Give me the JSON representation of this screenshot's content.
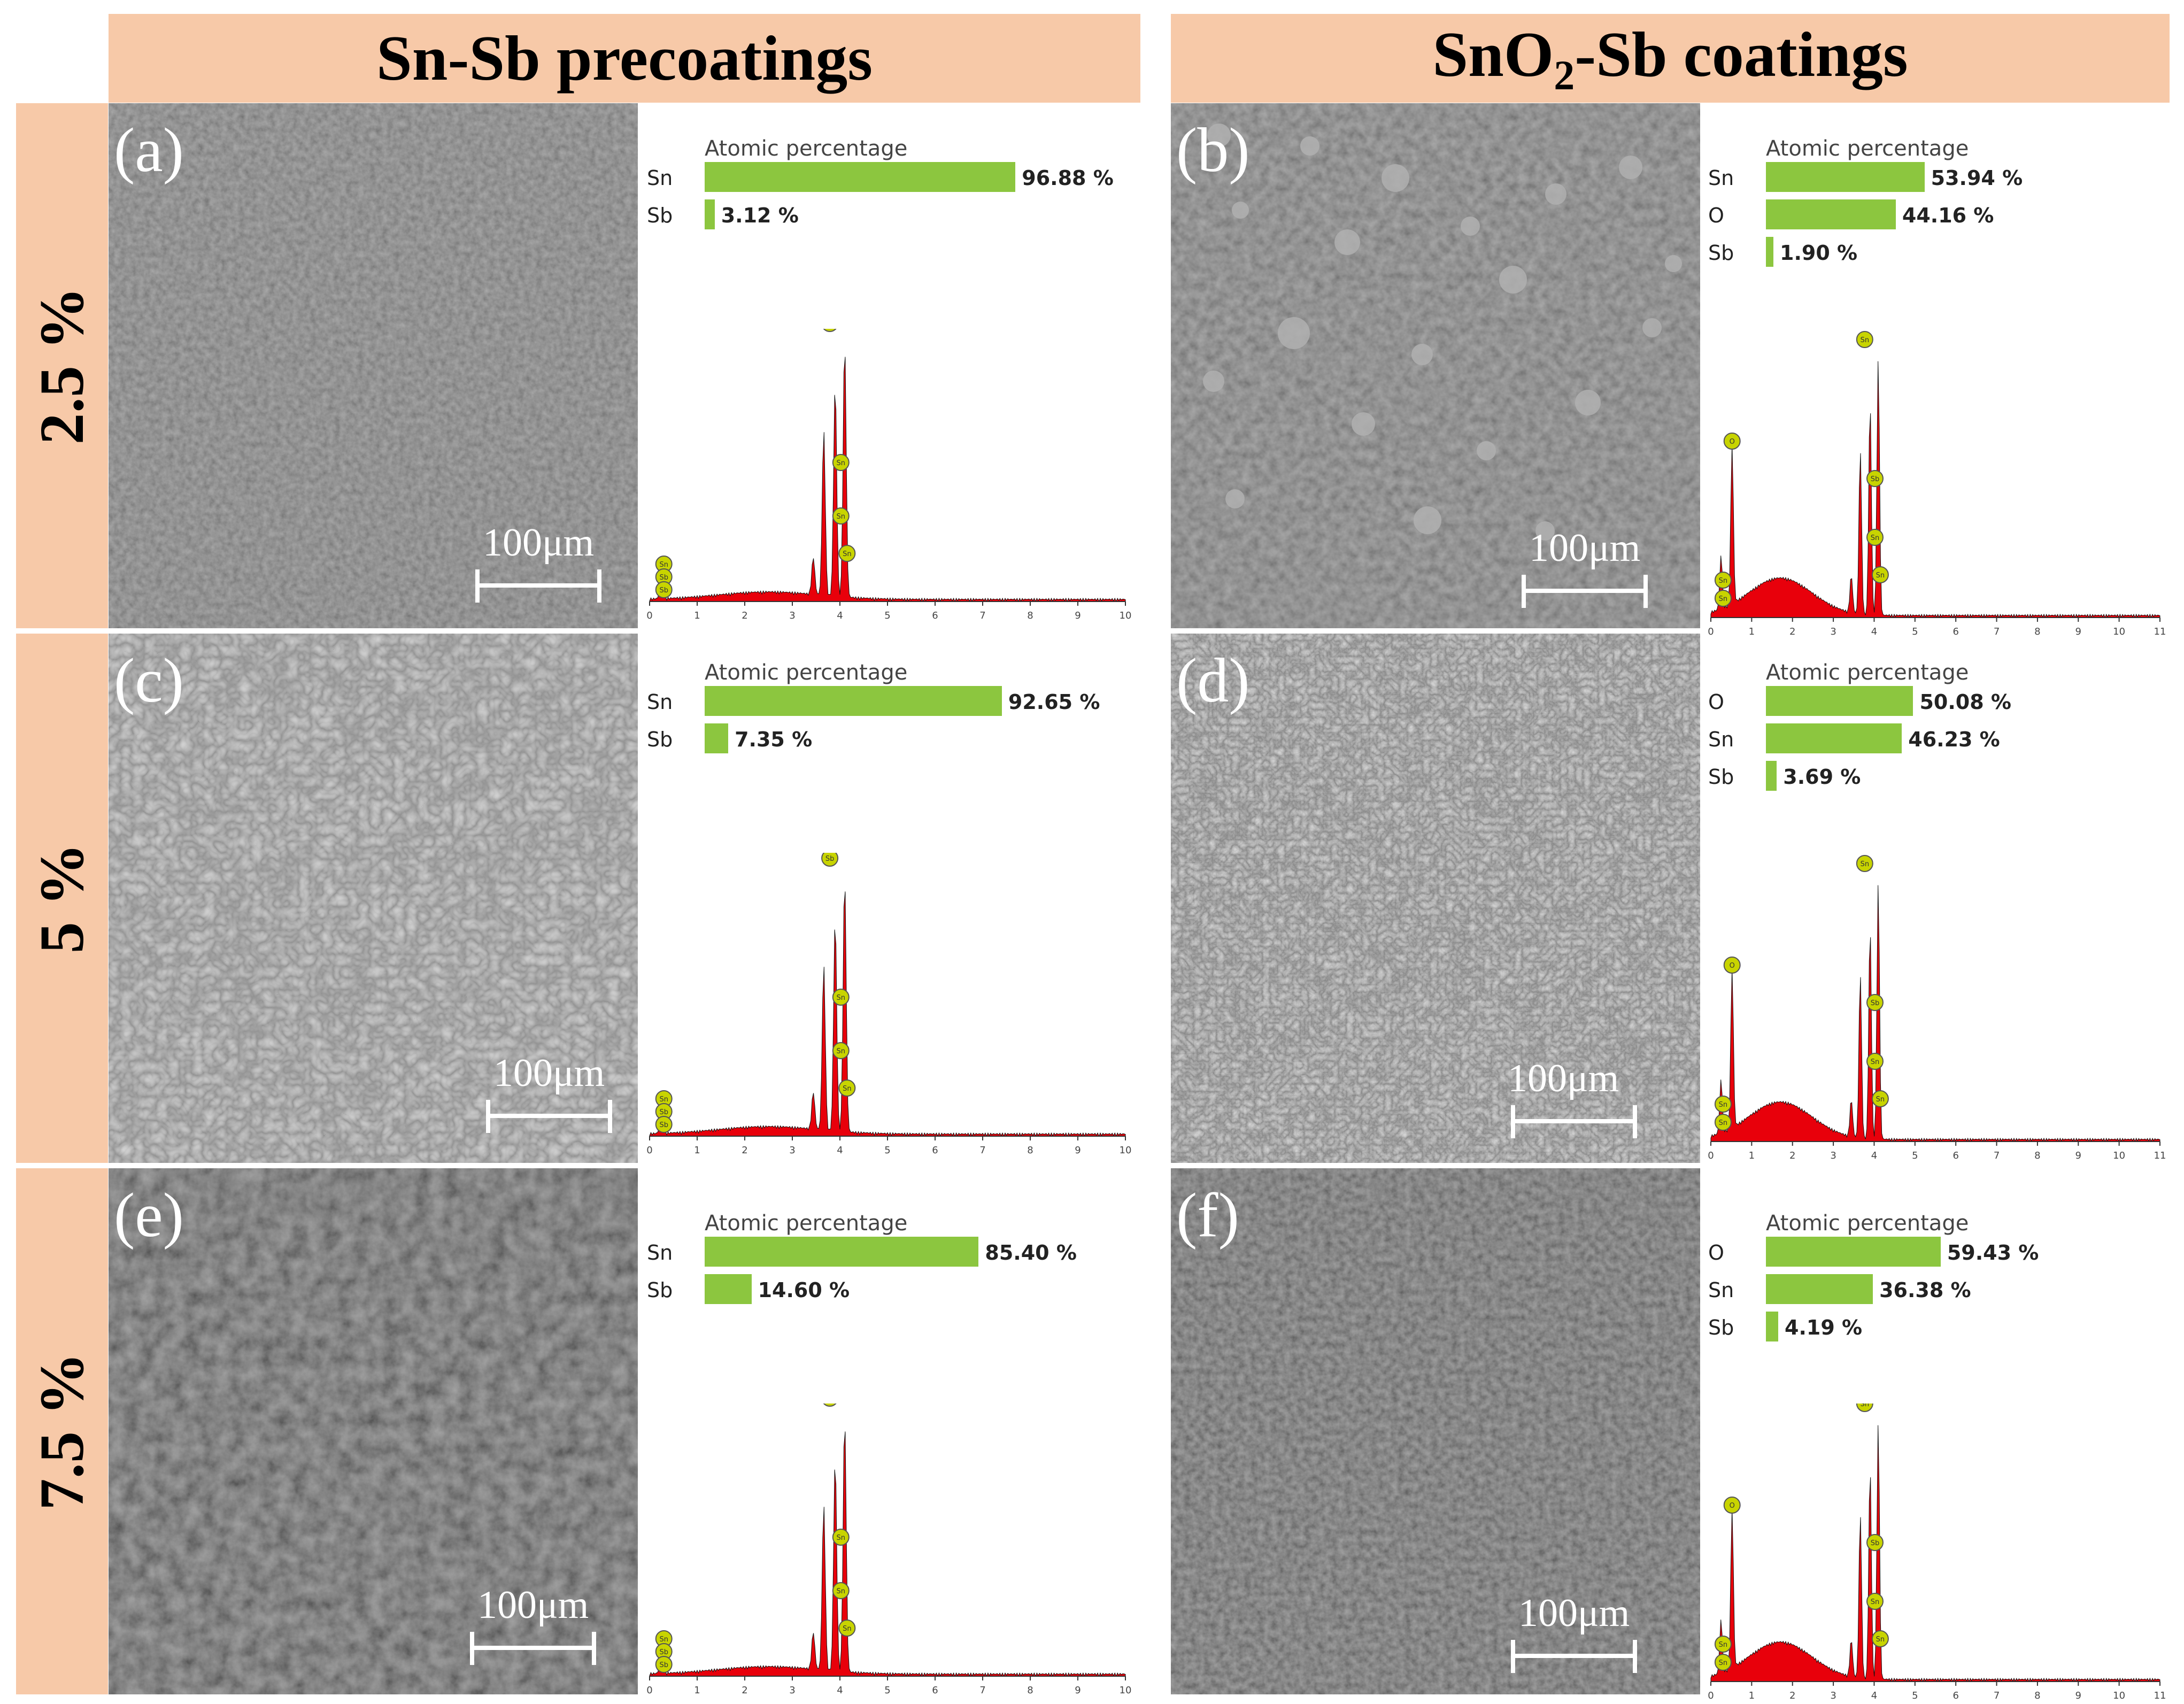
{
  "headers": {
    "left": "Sn-Sb precoatings",
    "right_pre": "SnO",
    "right_sub": "2",
    "right_post": "-Sb coatings"
  },
  "rows": [
    "2.5 %",
    "5 %",
    "7.5 %"
  ],
  "panels": {
    "a": {
      "label": "(a)",
      "scale": "100μm"
    },
    "b": {
      "label": "(b)",
      "scale": "100μm"
    },
    "c": {
      "label": "(c)",
      "scale": "100μm"
    },
    "d": {
      "label": "(d)",
      "scale": "100μm"
    },
    "e": {
      "label": "(e)",
      "scale": "100μm"
    },
    "f": {
      "label": "(f)",
      "scale": "100μm"
    }
  },
  "eds": {
    "a": {
      "title": "Atomic percentage",
      "rows": [
        {
          "el": "Sn",
          "pct": 96.88,
          "val": "96.88 %"
        },
        {
          "el": "Sb",
          "pct": 3.12,
          "val": "3.12 %"
        }
      ],
      "peaks": [
        "Sn",
        "Sb",
        "Sb",
        "Sb",
        "Sn",
        "Sn",
        "Sn"
      ]
    },
    "b": {
      "title": "Atomic percentage",
      "rows": [
        {
          "el": "Sn",
          "pct": 53.94,
          "val": "53.94 %"
        },
        {
          "el": "O",
          "pct": 44.16,
          "val": "44.16 %"
        },
        {
          "el": "Sb",
          "pct": 1.9,
          "val": "1.90 %"
        }
      ],
      "peaks": [
        "O",
        "Sn",
        "Sb",
        "Sn",
        "Sn",
        "Sn",
        "Sn"
      ]
    },
    "c": {
      "title": "Atomic percentage",
      "rows": [
        {
          "el": "Sn",
          "pct": 92.65,
          "val": "92.65 %"
        },
        {
          "el": "Sb",
          "pct": 7.35,
          "val": "7.35 %"
        }
      ],
      "peaks": [
        "Sn",
        "Sb",
        "Sb",
        "Sb",
        "Sn",
        "Sn",
        "Sn"
      ]
    },
    "d": {
      "title": "Atomic percentage",
      "rows": [
        {
          "el": "O",
          "pct": 50.08,
          "val": "50.08 %"
        },
        {
          "el": "Sn",
          "pct": 46.23,
          "val": "46.23 %"
        },
        {
          "el": "Sb",
          "pct": 3.69,
          "val": "3.69 %"
        }
      ],
      "peaks": [
        "O",
        "Sn",
        "Sb",
        "Sn",
        "Sn",
        "Sn",
        "Sn"
      ]
    },
    "e": {
      "title": "Atomic percentage",
      "rows": [
        {
          "el": "Sn",
          "pct": 85.4,
          "val": "85.40 %"
        },
        {
          "el": "Sb",
          "pct": 14.6,
          "val": "14.60 %"
        }
      ],
      "peaks": [
        "Sn",
        "Sb",
        "Sb",
        "Sb",
        "Sn",
        "Sn",
        "Sn"
      ]
    },
    "f": {
      "title": "Atomic percentage",
      "rows": [
        {
          "el": "O",
          "pct": 59.43,
          "val": "59.43 %"
        },
        {
          "el": "Sn",
          "pct": 36.38,
          "val": "36.38 %"
        },
        {
          "el": "Sb",
          "pct": 4.19,
          "val": "4.19 %"
        }
      ],
      "peaks": [
        "O",
        "Sn",
        "Sb",
        "Sn",
        "Sn",
        "Sn",
        "Sn"
      ]
    }
  },
  "axis_ticks": {
    "sn_sb": [
      "0",
      "1",
      "2",
      "3",
      "4",
      "5",
      "6",
      "7",
      "8",
      "9",
      "10"
    ],
    "sno2": [
      "0",
      "1",
      "2",
      "3",
      "4",
      "5",
      "6",
      "7",
      "8",
      "9",
      "10",
      "11"
    ]
  },
  "colors": {
    "header_bg": "#f7c9a8",
    "bar": "#8cc63f",
    "spectrum": "#e8000b",
    "peak_marker": "#c8d400"
  }
}
